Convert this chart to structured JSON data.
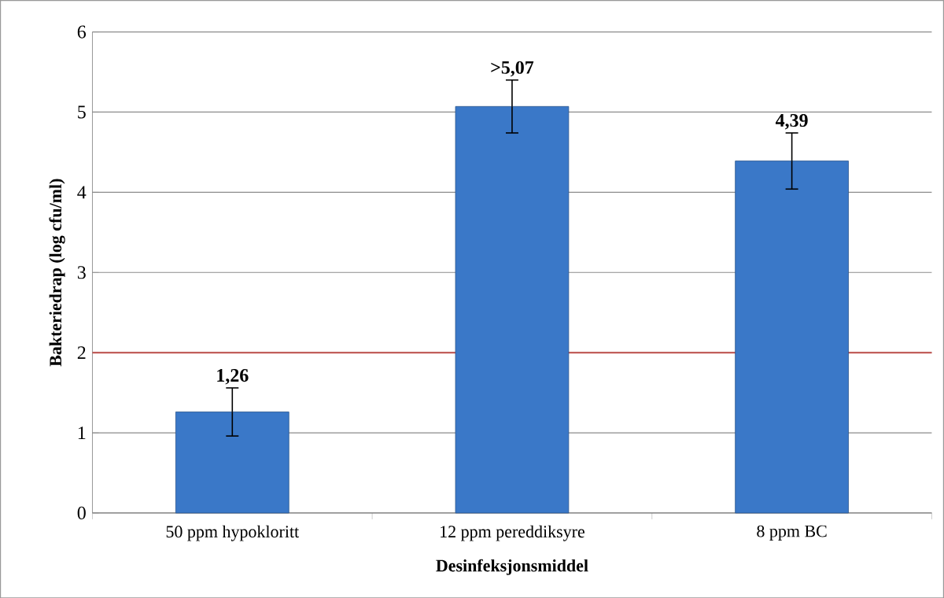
{
  "chart_data": {
    "type": "bar",
    "xlabel": "Desinfeksjonsmiddel",
    "ylabel": "Bakteriedrap (log cfu/ml)",
    "categories": [
      "50 ppm hypokloritt",
      "12 ppm pereddiksyre",
      "8 ppm BC"
    ],
    "values": [
      1.26,
      5.07,
      4.39
    ],
    "value_labels": [
      "1,26",
      ">5,07",
      "4,39"
    ],
    "errors": [
      0.3,
      0.33,
      0.35
    ],
    "color": "#3a78c8",
    "ylim": [
      0,
      6
    ],
    "yticks": [
      0,
      1,
      2,
      3,
      4,
      5,
      6
    ],
    "grid": "y",
    "ref_lines": [
      {
        "axis": "y",
        "value": 2,
        "color": "#c0504d"
      }
    ]
  }
}
